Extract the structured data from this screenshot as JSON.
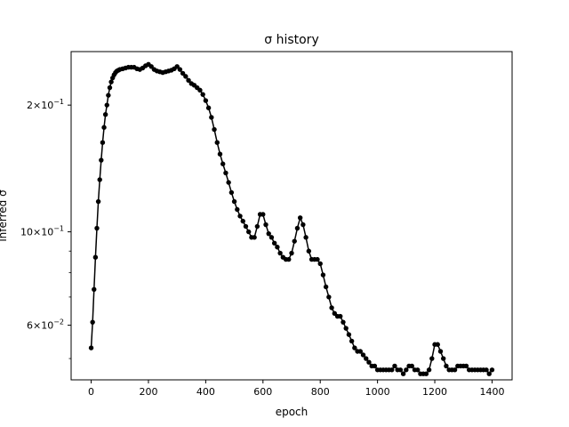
{
  "chart_data": {
    "type": "scatter",
    "title": "σ history",
    "xlabel": "epoch",
    "ylabel": "inferred σ",
    "xscale": "linear",
    "yscale": "log",
    "xlim": [
      -70,
      1470
    ],
    "ylim": [
      0.0445,
      0.268
    ],
    "grid": false,
    "legend": "none",
    "color": "#000000",
    "x_ticks": [
      {
        "value": 0,
        "label": "0"
      },
      {
        "value": 200,
        "label": "200"
      },
      {
        "value": 400,
        "label": "400"
      },
      {
        "value": 600,
        "label": "600"
      },
      {
        "value": 800,
        "label": "800"
      },
      {
        "value": 1000,
        "label": "1000"
      },
      {
        "value": 1200,
        "label": "1200"
      },
      {
        "value": 1400,
        "label": "1400"
      }
    ],
    "y_major_ticks": [
      {
        "value": 0.06,
        "base": "6",
        "exp": "−2"
      },
      {
        "value": 0.1,
        "base": "10",
        "exp": "−1"
      },
      {
        "value": 0.2,
        "base": "2",
        "exp": "−1"
      }
    ],
    "y_minor_ticks": [
      0.05,
      0.07,
      0.08,
      0.09
    ],
    "series": [
      {
        "x": [
          0,
          5,
          10,
          15,
          20,
          25,
          30,
          35,
          40,
          45,
          50,
          55,
          60,
          65,
          70,
          75,
          80,
          85,
          90,
          95,
          100,
          110,
          120,
          130,
          140,
          150,
          160,
          170,
          180,
          190,
          200,
          210,
          220,
          230,
          240,
          250,
          260,
          270,
          280,
          290,
          300,
          310,
          320,
          330,
          340,
          350,
          360,
          370,
          380,
          390,
          400,
          410,
          420,
          430,
          440,
          450,
          460,
          470,
          480,
          490,
          500,
          510,
          520,
          530,
          540,
          550,
          560,
          570,
          580,
          590,
          600,
          610,
          620,
          630,
          640,
          650,
          660,
          670,
          680,
          690,
          700,
          710,
          720,
          730,
          740,
          750,
          760,
          770,
          780,
          790,
          800,
          810,
          820,
          830,
          840,
          850,
          860,
          870,
          880,
          890,
          900,
          910,
          920,
          930,
          940,
          950,
          960,
          970,
          980,
          990,
          1000,
          1010,
          1020,
          1030,
          1040,
          1050,
          1060,
          1070,
          1080,
          1090,
          1100,
          1110,
          1120,
          1130,
          1140,
          1150,
          1160,
          1170,
          1180,
          1190,
          1200,
          1210,
          1220,
          1230,
          1240,
          1250,
          1260,
          1270,
          1280,
          1290,
          1300,
          1310,
          1320,
          1330,
          1340,
          1350,
          1360,
          1370,
          1380,
          1390,
          1400
        ],
        "y": [
          0.053,
          0.061,
          0.073,
          0.087,
          0.102,
          0.118,
          0.133,
          0.148,
          0.163,
          0.177,
          0.19,
          0.2,
          0.211,
          0.22,
          0.227,
          0.232,
          0.236,
          0.239,
          0.241,
          0.242,
          0.243,
          0.244,
          0.245,
          0.246,
          0.246,
          0.246,
          0.244,
          0.243,
          0.245,
          0.248,
          0.25,
          0.247,
          0.243,
          0.241,
          0.24,
          0.239,
          0.24,
          0.241,
          0.242,
          0.244,
          0.247,
          0.243,
          0.238,
          0.234,
          0.229,
          0.225,
          0.223,
          0.22,
          0.217,
          0.212,
          0.205,
          0.197,
          0.187,
          0.175,
          0.163,
          0.153,
          0.145,
          0.138,
          0.131,
          0.124,
          0.118,
          0.113,
          0.109,
          0.106,
          0.103,
          0.1,
          0.097,
          0.097,
          0.103,
          0.11,
          0.11,
          0.104,
          0.099,
          0.097,
          0.094,
          0.092,
          0.089,
          0.087,
          0.086,
          0.086,
          0.089,
          0.095,
          0.102,
          0.108,
          0.104,
          0.097,
          0.09,
          0.086,
          0.086,
          0.086,
          0.084,
          0.079,
          0.074,
          0.07,
          0.066,
          0.064,
          0.063,
          0.063,
          0.061,
          0.059,
          0.057,
          0.055,
          0.053,
          0.052,
          0.052,
          0.051,
          0.05,
          0.049,
          0.048,
          0.048,
          0.047,
          0.047,
          0.047,
          0.047,
          0.047,
          0.047,
          0.048,
          0.047,
          0.047,
          0.046,
          0.047,
          0.048,
          0.048,
          0.047,
          0.047,
          0.046,
          0.046,
          0.046,
          0.047,
          0.05,
          0.054,
          0.054,
          0.052,
          0.05,
          0.048,
          0.047,
          0.047,
          0.047,
          0.048,
          0.048,
          0.048,
          0.048,
          0.047,
          0.047,
          0.047,
          0.047,
          0.047,
          0.047,
          0.047,
          0.046,
          0.047
        ]
      }
    ]
  }
}
